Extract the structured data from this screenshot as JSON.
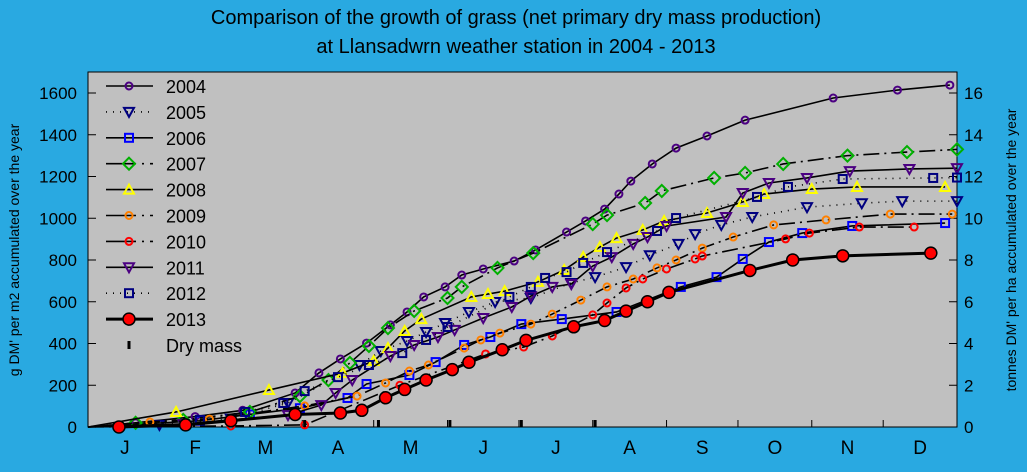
{
  "chart_data": {
    "type": "line",
    "title": "Comparison of the growth of grass (net primary dry mass production)",
    "subtitle": "at Llansadwrn weather station in 2004 - 2013",
    "ylabel": "g DM' per m2 accumulated over the year",
    "ylabel_right": "tonnes DM' per ha accumulated over the year",
    "xlabel": "",
    "x_unit": "day of year",
    "xlim": [
      0,
      365
    ],
    "ylim": [
      0,
      1700
    ],
    "ylim_right": [
      0,
      17
    ],
    "y_ticks": [
      0,
      200,
      400,
      600,
      800,
      1000,
      1200,
      1400,
      1600
    ],
    "y_ticks_right": [
      0,
      2,
      4,
      6,
      8,
      10,
      12,
      14,
      16
    ],
    "x_tick_labels": [
      "J",
      "F",
      "M",
      "A",
      "M",
      "J",
      "J",
      "A",
      "S",
      "O",
      "N",
      "D"
    ],
    "grid": false,
    "legend_position": "top-left",
    "background_color": "#29a9e1",
    "plot_background": "#c0c0c0",
    "series": [
      {
        "name": "2004",
        "marker": "circle",
        "color": "#4b0082",
        "line": "solid",
        "points": [
          [
            0,
            0
          ],
          [
            20,
            20
          ],
          [
            45,
            50
          ],
          [
            65,
            80
          ],
          [
            87,
            163
          ],
          [
            97,
            259
          ],
          [
            106,
            326
          ],
          [
            117,
            402
          ],
          [
            127,
            489
          ],
          [
            134,
            551
          ],
          [
            141,
            623
          ],
          [
            150,
            671
          ],
          [
            157,
            728
          ],
          [
            166,
            757
          ],
          [
            179,
            795
          ],
          [
            188,
            848
          ],
          [
            201,
            934
          ],
          [
            209,
            987
          ],
          [
            217,
            1044
          ],
          [
            223,
            1116
          ],
          [
            228,
            1178
          ],
          [
            237,
            1260
          ],
          [
            247,
            1336
          ],
          [
            260,
            1394
          ],
          [
            276,
            1470
          ],
          [
            313,
            1576
          ],
          [
            340,
            1614
          ],
          [
            362,
            1638
          ]
        ]
      },
      {
        "name": "2005",
        "marker": "triangle-down",
        "color": "#000080",
        "line": "dotted",
        "points": [
          [
            0,
            0
          ],
          [
            30,
            10
          ],
          [
            60,
            40
          ],
          [
            84,
            115
          ],
          [
            114,
            297
          ],
          [
            123,
            364
          ],
          [
            134,
            412
          ],
          [
            142,
            455
          ],
          [
            150,
            498
          ],
          [
            160,
            551
          ],
          [
            171,
            599
          ],
          [
            186,
            618
          ],
          [
            203,
            690
          ],
          [
            213,
            718
          ],
          [
            226,
            766
          ],
          [
            236,
            823
          ],
          [
            248,
            877
          ],
          [
            255,
            924
          ],
          [
            266,
            968
          ],
          [
            279,
            1006
          ],
          [
            302,
            1053
          ],
          [
            325,
            1072
          ],
          [
            342,
            1082
          ],
          [
            365,
            1082
          ]
        ]
      },
      {
        "name": "2006",
        "marker": "square",
        "color": "#0000ff",
        "line": "solid",
        "points": [
          [
            0,
            0
          ],
          [
            47,
            30
          ],
          [
            68,
            60
          ],
          [
            89,
            90
          ],
          [
            109,
            139
          ],
          [
            117,
            206
          ],
          [
            135,
            249
          ],
          [
            146,
            311
          ],
          [
            158,
            393
          ],
          [
            169,
            431
          ],
          [
            182,
            493
          ],
          [
            199,
            517
          ],
          [
            222,
            551
          ],
          [
            249,
            671
          ],
          [
            264,
            718
          ],
          [
            275,
            805
          ],
          [
            286,
            886
          ],
          [
            300,
            929
          ],
          [
            321,
            963
          ],
          [
            360,
            977
          ]
        ]
      },
      {
        "name": "2007",
        "marker": "diamond",
        "color": "#00b000",
        "line": "dash-dot",
        "points": [
          [
            0,
            0
          ],
          [
            20,
            20
          ],
          [
            40,
            34
          ],
          [
            68,
            72
          ],
          [
            89,
            148
          ],
          [
            101,
            225
          ],
          [
            110,
            307
          ],
          [
            118,
            388
          ],
          [
            126,
            474
          ],
          [
            137,
            556
          ],
          [
            151,
            618
          ],
          [
            157,
            671
          ],
          [
            172,
            762
          ],
          [
            187,
            833
          ],
          [
            212,
            972
          ],
          [
            218,
            1015
          ],
          [
            234,
            1073
          ],
          [
            241,
            1131
          ],
          [
            263,
            1193
          ],
          [
            276,
            1217
          ],
          [
            292,
            1260
          ],
          [
            319,
            1300
          ],
          [
            344,
            1317
          ],
          [
            365,
            1330
          ]
        ]
      },
      {
        "name": "2008",
        "marker": "triangle-up",
        "color": "#ffff00",
        "line": "solid",
        "points": [
          [
            0,
            0
          ],
          [
            37,
            72
          ],
          [
            76,
            177
          ],
          [
            107,
            259
          ],
          [
            120,
            316
          ],
          [
            126,
            378
          ],
          [
            133,
            460
          ],
          [
            140,
            517
          ],
          [
            161,
            623
          ],
          [
            168,
            637
          ],
          [
            175,
            651
          ],
          [
            189,
            695
          ],
          [
            200,
            752
          ],
          [
            208,
            814
          ],
          [
            215,
            862
          ],
          [
            222,
            905
          ],
          [
            233,
            944
          ],
          [
            242,
            987
          ],
          [
            260,
            1025
          ],
          [
            275,
            1078
          ],
          [
            284,
            1116
          ],
          [
            304,
            1140
          ],
          [
            323,
            1150
          ],
          [
            360,
            1150
          ]
        ]
      },
      {
        "name": "2009",
        "marker": "circle",
        "color": "#ff8000",
        "line": "dash-dot",
        "points": [
          [
            0,
            0
          ],
          [
            26,
            24
          ],
          [
            51,
            38
          ],
          [
            91,
            101
          ],
          [
            113,
            148
          ],
          [
            125,
            211
          ],
          [
            135,
            268
          ],
          [
            143,
            297
          ],
          [
            158,
            378
          ],
          [
            165,
            417
          ],
          [
            173,
            450
          ],
          [
            186,
            493
          ],
          [
            195,
            541
          ],
          [
            207,
            608
          ],
          [
            218,
            671
          ],
          [
            229,
            709
          ],
          [
            239,
            762
          ],
          [
            247,
            800
          ],
          [
            258,
            857
          ],
          [
            271,
            910
          ],
          [
            288,
            968
          ],
          [
            310,
            992
          ],
          [
            337,
            1020
          ],
          [
            363,
            1020
          ]
        ]
      },
      {
        "name": "2010",
        "marker": "circle",
        "color": "#ff0000",
        "line": "dash-dot",
        "points": [
          [
            0,
            0
          ],
          [
            60,
            5
          ],
          [
            91,
            10
          ],
          [
            131,
            200
          ],
          [
            167,
            350
          ],
          [
            183,
            383
          ],
          [
            195,
            436
          ],
          [
            212,
            537
          ],
          [
            218,
            594
          ],
          [
            226,
            666
          ],
          [
            233,
            709
          ],
          [
            243,
            757
          ],
          [
            255,
            805
          ],
          [
            258,
            819
          ],
          [
            293,
            901
          ],
          [
            303,
            929
          ],
          [
            324,
            958
          ],
          [
            347,
            958
          ]
        ]
      },
      {
        "name": "2011",
        "marker": "triangle-down",
        "color": "#4b0082",
        "line": "solid",
        "points": [
          [
            0,
            0
          ],
          [
            40,
            15
          ],
          [
            84,
            57
          ],
          [
            98,
            105
          ],
          [
            104,
            163
          ],
          [
            111,
            225
          ],
          [
            127,
            340
          ],
          [
            137,
            393
          ],
          [
            147,
            431
          ],
          [
            154,
            465
          ],
          [
            166,
            522
          ],
          [
            178,
            575
          ],
          [
            186,
            627
          ],
          [
            195,
            671
          ],
          [
            203,
            685
          ],
          [
            212,
            771
          ],
          [
            220,
            814
          ],
          [
            229,
            877
          ],
          [
            235,
            910
          ],
          [
            243,
            963
          ],
          [
            268,
            1006
          ],
          [
            275,
            1121
          ],
          [
            286,
            1169
          ],
          [
            302,
            1193
          ],
          [
            320,
            1226
          ],
          [
            345,
            1236
          ],
          [
            365,
            1240
          ]
        ]
      },
      {
        "name": "2012",
        "marker": "square",
        "color": "#000080",
        "line": "dotted",
        "points": [
          [
            0,
            0
          ],
          [
            47,
            34
          ],
          [
            66,
            72
          ],
          [
            82,
            115
          ],
          [
            91,
            172
          ],
          [
            105,
            239
          ],
          [
            118,
            297
          ],
          [
            132,
            354
          ],
          [
            142,
            417
          ],
          [
            151,
            479
          ],
          [
            177,
            623
          ],
          [
            186,
            671
          ],
          [
            192,
            714
          ],
          [
            201,
            742
          ],
          [
            208,
            786
          ],
          [
            218,
            838
          ],
          [
            239,
            939
          ],
          [
            247,
            1001
          ],
          [
            281,
            1102
          ],
          [
            294,
            1150
          ],
          [
            317,
            1188
          ],
          [
            355,
            1193
          ],
          [
            365,
            1195
          ]
        ]
      },
      {
        "name": "2013",
        "marker": "circle-filled",
        "color": "#ff0000",
        "line": "thick",
        "points": [
          [
            13,
            0
          ],
          [
            41,
            10
          ],
          [
            60,
            30
          ],
          [
            87,
            60
          ],
          [
            106,
            67
          ],
          [
            115,
            80
          ],
          [
            125,
            140
          ],
          [
            133,
            180
          ],
          [
            142,
            225
          ],
          [
            153,
            275
          ],
          [
            160,
            310
          ],
          [
            174,
            370
          ],
          [
            184,
            415
          ],
          [
            204,
            480
          ],
          [
            217,
            510
          ],
          [
            226,
            555
          ],
          [
            235,
            600
          ],
          [
            244,
            645
          ],
          [
            278,
            750
          ],
          [
            296,
            800
          ],
          [
            317,
            820
          ],
          [
            354,
            833
          ]
        ]
      }
    ],
    "dry_mass": {
      "name": "Dry mass",
      "days": [
        91,
        122,
        152,
        182,
        213
      ]
    }
  }
}
